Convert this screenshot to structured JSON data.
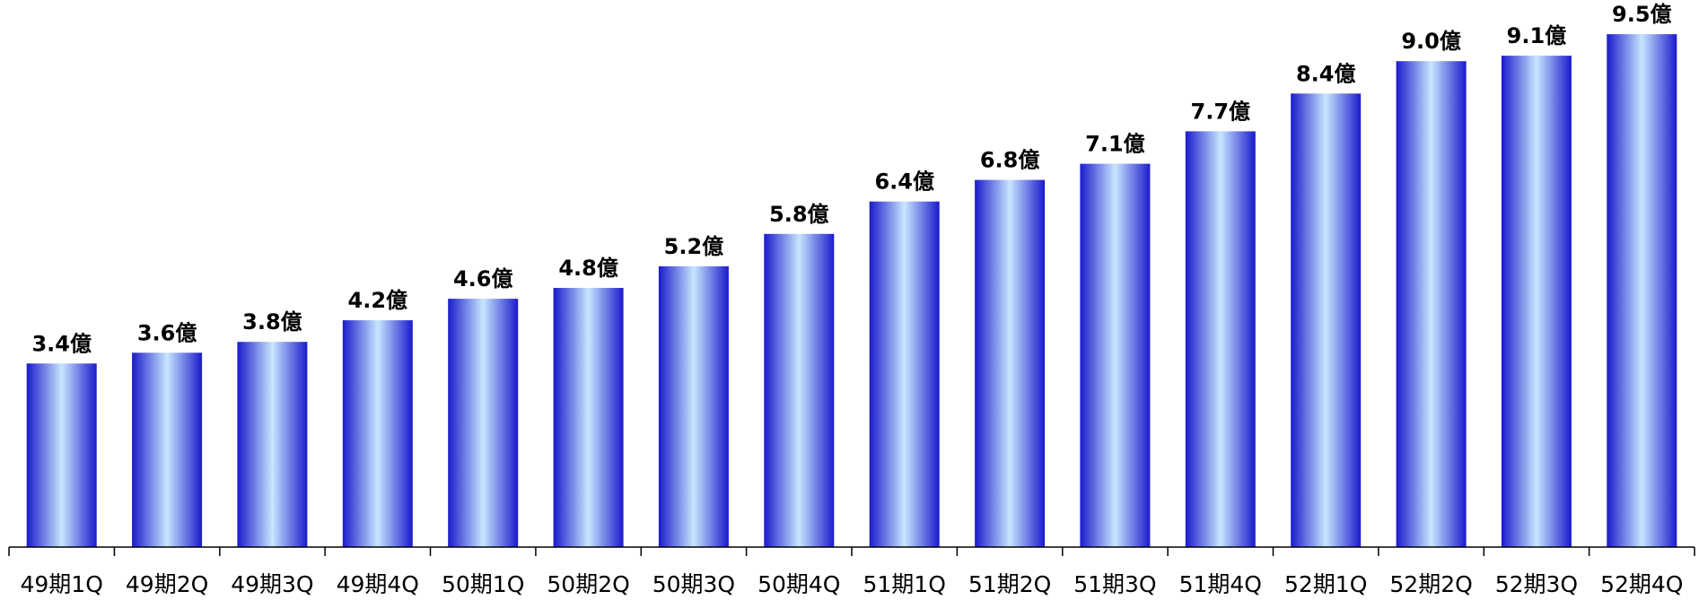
{
  "chart_data": {
    "type": "bar",
    "title": "",
    "xlabel": "",
    "ylabel": "",
    "ylim": [
      0,
      9.8
    ],
    "grid": false,
    "legend": "none",
    "categories": [
      "49期1Q",
      "49期2Q",
      "49期3Q",
      "49期4Q",
      "50期1Q",
      "50期2Q",
      "50期3Q",
      "50期4Q",
      "51期1Q",
      "51期2Q",
      "51期3Q",
      "51期4Q",
      "52期1Q",
      "52期2Q",
      "52期3Q",
      "52期4Q"
    ],
    "values": [
      3.4,
      3.6,
      3.8,
      4.2,
      4.6,
      4.8,
      5.2,
      5.8,
      6.4,
      6.8,
      7.1,
      7.7,
      8.4,
      9.0,
      9.1,
      9.5
    ],
    "data_labels": [
      "3.4億",
      "3.6億",
      "3.8億",
      "4.2億",
      "4.6億",
      "4.8億",
      "5.2億",
      "5.8億",
      "6.4億",
      "6.8億",
      "7.1億",
      "7.7億",
      "8.4億",
      "9.0億",
      "9.1億",
      "9.5億"
    ],
    "colors": {
      "bar_edge": "#1a1acc",
      "bar_center": "#c8e6ff",
      "axis": "#000000"
    }
  }
}
